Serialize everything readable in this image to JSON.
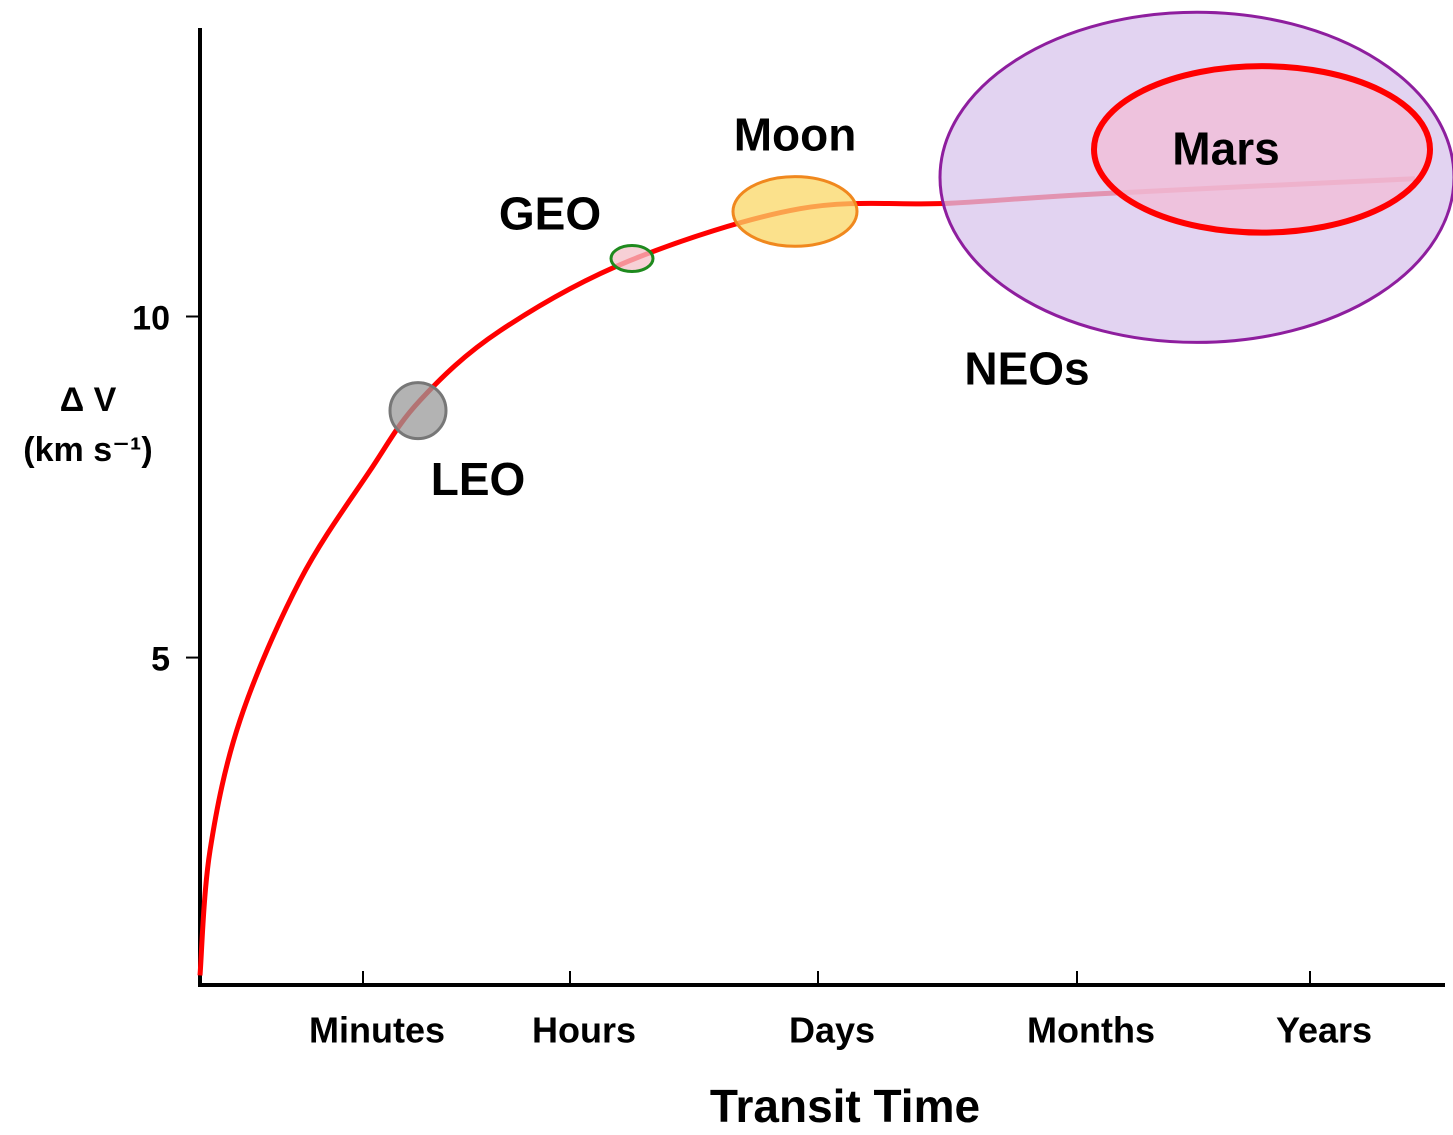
{
  "chart_data": {
    "type": "line",
    "x_label": "Transit Time",
    "y_label": [
      "Δ V",
      "(km s⁻¹)"
    ],
    "xlim": [
      0,
      12.45
    ],
    "xticks": [
      {
        "value": 1.63,
        "label": "Minutes"
      },
      {
        "value": 3.7,
        "label": "Hours"
      },
      {
        "value": 6.18,
        "label": "Days"
      },
      {
        "value": 8.77,
        "label": "Months"
      },
      {
        "value": 11.1,
        "label": "Years"
      }
    ],
    "ylim": [
      0.2,
      14.2
    ],
    "yticks": [
      5,
      10
    ],
    "series": [
      {
        "color": "#ff0000",
        "x": [
          0,
          0.1,
          0.4,
          1.0,
          1.7,
          2.2,
          3.0,
          4.3,
          6.0,
          7.5,
          9.0,
          12.15
        ],
        "values": [
          0.34,
          2.17,
          4.08,
          6.13,
          7.74,
          8.77,
          9.79,
          10.82,
          11.58,
          11.66,
          11.8,
          12.02
        ]
      }
    ],
    "regions": [
      {
        "name": "NEOs",
        "x": 9.97,
        "y": 12.04,
        "dx": 2.57,
        "dy": 2.42,
        "color": "#d8c4ec",
        "edge_color": "#8e1e9e"
      },
      {
        "name": "Mars",
        "x": 10.62,
        "y": 12.45,
        "dx": 1.68,
        "dy": 1.22,
        "color": "#f2bcd6",
        "edge_color": "#ff0000"
      },
      {
        "name": "Moon",
        "x": 5.95,
        "y": 11.54,
        "dx": 0.62,
        "dy": 0.51,
        "color": "#f9d766",
        "edge_color": "#f0881e"
      },
      {
        "name": "GEO",
        "x": 4.32,
        "y": 10.85,
        "dx": 0.21,
        "dy": 0.19,
        "color": "#f4c0c8",
        "edge_color": "#1e8a1e"
      },
      {
        "name": "LEO",
        "x": 2.18,
        "y": 8.62,
        "dx": 0.28,
        "dy": 0.41,
        "color": "#9a9a9a",
        "edge_color": "#777777"
      }
    ]
  }
}
